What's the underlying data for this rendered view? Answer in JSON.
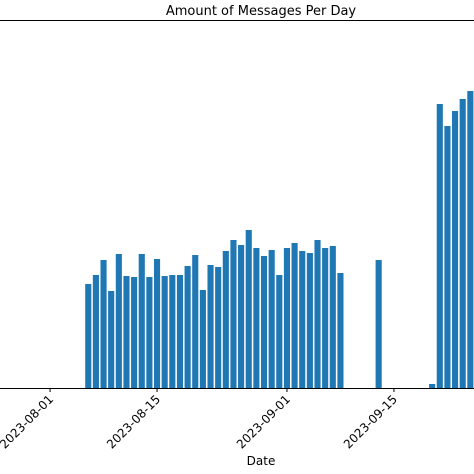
{
  "chart_data": {
    "type": "bar",
    "title": "Amount of Messages Per Day",
    "x_label": "Date",
    "x": [
      "2023-08-06",
      "2023-08-07",
      "2023-08-08",
      "2023-08-09",
      "2023-08-10",
      "2023-08-11",
      "2023-08-12",
      "2023-08-13",
      "2023-08-14",
      "2023-08-15",
      "2023-08-16",
      "2023-08-17",
      "2023-08-18",
      "2023-08-19",
      "2023-08-20",
      "2023-08-21",
      "2023-08-22",
      "2023-08-23",
      "2023-08-24",
      "2023-08-25",
      "2023-08-26",
      "2023-08-27",
      "2023-08-28",
      "2023-08-29",
      "2023-08-30",
      "2023-08-31",
      "2023-09-01",
      "2023-09-02",
      "2023-09-03",
      "2023-09-04",
      "2023-09-05",
      "2023-09-06",
      "2023-09-07",
      "2023-09-08",
      "2023-09-13",
      "2023-09-20",
      "2023-09-21",
      "2023-09-22",
      "2023-09-23",
      "2023-09-24",
      "2023-09-25"
    ],
    "values": [
      104,
      113,
      128,
      97,
      134,
      112,
      111,
      134,
      111,
      129,
      112,
      113,
      113,
      122,
      133,
      98,
      123,
      121,
      137,
      148,
      143,
      158,
      140,
      132,
      138,
      113,
      140,
      145,
      137,
      135,
      148,
      140,
      142,
      115,
      128,
      4,
      284,
      262,
      277,
      289,
      297
    ],
    "color": "#1f77b4",
    "xlim": [
      "2023-07-26",
      "2023-09-26"
    ],
    "xticks": [
      "2023-08-01",
      "2023-08-15",
      "2023-09-01",
      "2023-09-15"
    ],
    "ylim": [
      0,
      368
    ]
  }
}
